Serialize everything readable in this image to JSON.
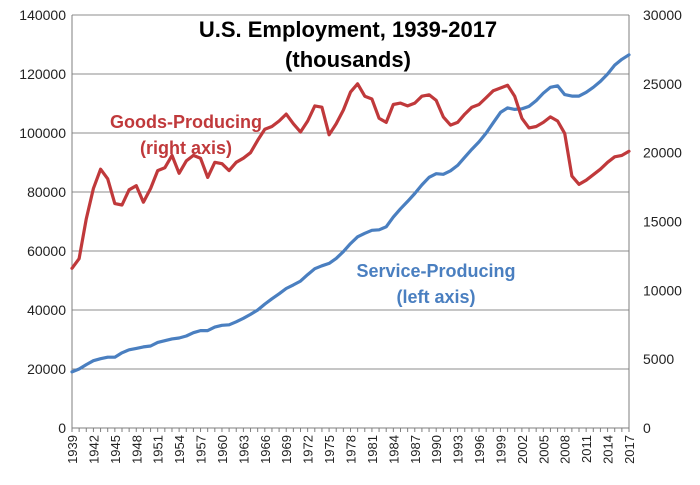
{
  "chart_data": {
    "type": "line",
    "title": "U.S. Employment, 1939-2017",
    "subtitle": "(thousands)",
    "x_start": 1939,
    "x_end": 2017,
    "x_tick_labels": [
      "1939",
      "1942",
      "1945",
      "1948",
      "1951",
      "1954",
      "1957",
      "1960",
      "1963",
      "1966",
      "1969",
      "1972",
      "1975",
      "1978",
      "1981",
      "1984",
      "1987",
      "1990",
      "1993",
      "1996",
      "1999",
      "2002",
      "2005",
      "2008",
      "2011",
      "2014",
      "2017"
    ],
    "y_left": {
      "range": [
        0,
        140000
      ],
      "ticks": [
        "0",
        "20000",
        "40000",
        "60000",
        "80000",
        "100000",
        "120000",
        "140000"
      ]
    },
    "y_right": {
      "range": [
        0,
        30000
      ],
      "ticks": [
        "0",
        "5000",
        "10000",
        "15000",
        "20000",
        "25000",
        "30000"
      ]
    },
    "grid": "horizontal",
    "series": [
      {
        "name": "Service-Producing",
        "label_lines": [
          "Service-Producing",
          "(left axis)"
        ],
        "axis": "left",
        "color": "#4a7fc0",
        "x": [
          1939,
          1940,
          1941,
          1942,
          1943,
          1944,
          1945,
          1946,
          1947,
          1948,
          1949,
          1950,
          1951,
          1952,
          1953,
          1954,
          1955,
          1956,
          1957,
          1958,
          1959,
          1960,
          1961,
          1962,
          1963,
          1964,
          1965,
          1966,
          1967,
          1968,
          1969,
          1970,
          1971,
          1972,
          1973,
          1974,
          1975,
          1976,
          1977,
          1978,
          1979,
          1980,
          1981,
          1982,
          1983,
          1984,
          1985,
          1986,
          1987,
          1988,
          1989,
          1990,
          1991,
          1992,
          1993,
          1994,
          1995,
          1996,
          1997,
          1998,
          1999,
          2000,
          2001,
          2002,
          2003,
          2004,
          2005,
          2006,
          2007,
          2008,
          2009,
          2010,
          2011,
          2012,
          2013,
          2014,
          2015,
          2016,
          2017
        ],
        "values": [
          19000,
          20000,
          21500,
          22800,
          23500,
          24000,
          24000,
          25500,
          26500,
          27000,
          27500,
          27800,
          29000,
          29600,
          30200,
          30500,
          31200,
          32300,
          33000,
          33000,
          34200,
          34800,
          35000,
          36000,
          37200,
          38500,
          40000,
          42000,
          43800,
          45500,
          47300,
          48500,
          49800,
          52000,
          54000,
          55000,
          55800,
          57500,
          59800,
          62500,
          64800,
          66000,
          67000,
          67200,
          68200,
          71500,
          74300,
          76800,
          79500,
          82400,
          85000,
          86200,
          86000,
          87200,
          89000,
          91800,
          94500,
          97000,
          100000,
          103500,
          107000,
          108500,
          108000,
          108200,
          109000,
          111000,
          113500,
          115500,
          116000,
          113000,
          112500,
          112500,
          113800,
          115500,
          117500,
          120000,
          123000,
          125000,
          126500
        ]
      },
      {
        "name": "Goods-Producing",
        "label_lines": [
          "Goods-Producing",
          "(right axis)"
        ],
        "axis": "right",
        "color": "#c0393b",
        "x": [
          1939,
          1940,
          1941,
          1942,
          1943,
          1944,
          1945,
          1946,
          1947,
          1948,
          1949,
          1950,
          1951,
          1952,
          1953,
          1954,
          1955,
          1956,
          1957,
          1958,
          1959,
          1960,
          1961,
          1962,
          1963,
          1964,
          1965,
          1966,
          1967,
          1968,
          1969,
          1970,
          1971,
          1972,
          1973,
          1974,
          1975,
          1976,
          1977,
          1978,
          1979,
          1980,
          1981,
          1982,
          1983,
          1984,
          1985,
          1986,
          1987,
          1988,
          1989,
          1990,
          1991,
          1992,
          1993,
          1994,
          1995,
          1996,
          1997,
          1998,
          1999,
          2000,
          2001,
          2002,
          2003,
          2004,
          2005,
          2006,
          2007,
          2008,
          2009,
          2010,
          2011,
          2012,
          2013,
          2014,
          2015,
          2016,
          2017
        ],
        "values": [
          11600,
          12300,
          15200,
          17400,
          18800,
          18100,
          16300,
          16200,
          17300,
          17600,
          16400,
          17400,
          18700,
          18900,
          19800,
          18500,
          19400,
          19800,
          19600,
          18200,
          19300,
          19200,
          18700,
          19300,
          19600,
          20000,
          20900,
          21700,
          21900,
          22300,
          22800,
          22100,
          21500,
          22300,
          23400,
          23300,
          21300,
          22100,
          23100,
          24400,
          25000,
          24100,
          23900,
          22500,
          22200,
          23500,
          23600,
          23400,
          23600,
          24100,
          24200,
          23800,
          22600,
          22000,
          22200,
          22800,
          23300,
          23500,
          24000,
          24500,
          24700,
          24900,
          24100,
          22500,
          21800,
          21900,
          22200,
          22600,
          22300,
          21400,
          18300,
          17700,
          18000,
          18400,
          18800,
          19300,
          19700,
          19800,
          20100
        ]
      }
    ]
  }
}
